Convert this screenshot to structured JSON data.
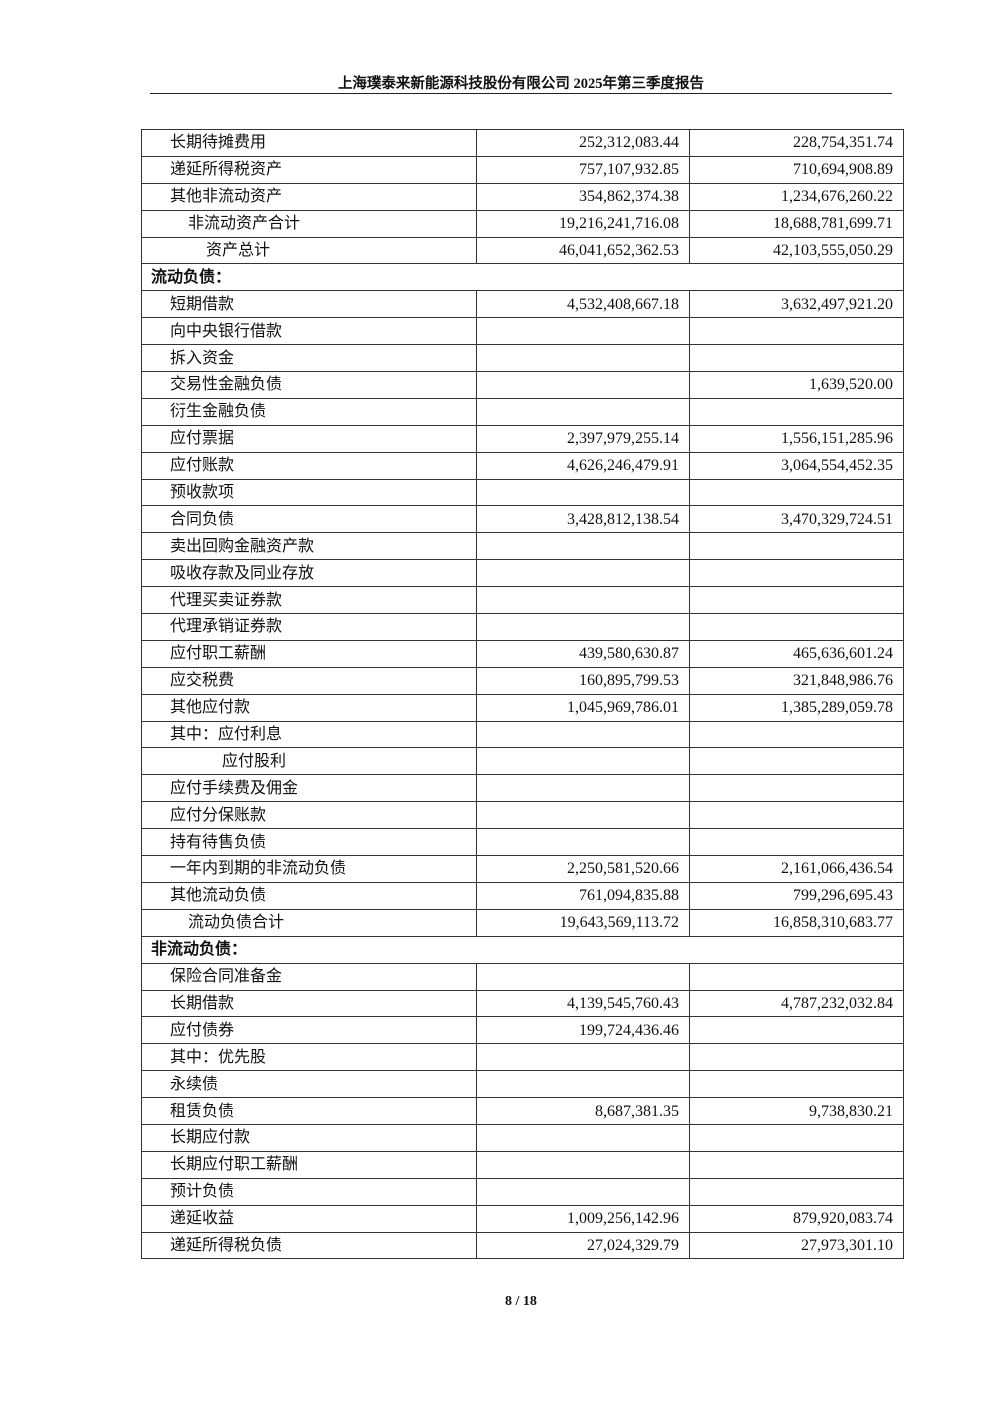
{
  "header": {
    "title": "上海璞泰来新能源科技股份有限公司 2025年第三季度报告"
  },
  "rows": [
    {
      "label": "长期待摊费用",
      "a": "252,312,083.44",
      "b": "228,754,351.74"
    },
    {
      "label": "递延所得税资产",
      "a": "757,107,932.85",
      "b": "710,694,908.89"
    },
    {
      "label": "其他非流动资产",
      "a": "354,862,374.38",
      "b": "1,234,676,260.22"
    },
    {
      "label": "非流动资产合计",
      "a": "19,216,241,716.08",
      "b": "18,688,781,699.71",
      "indent": 1
    },
    {
      "label": "资产总计",
      "a": "46,041,652,362.53",
      "b": "42,103,555,050.29",
      "indent": 2
    },
    {
      "label": "流动负债：",
      "section": true
    },
    {
      "label": "短期借款",
      "a": "4,532,408,667.18",
      "b": "3,632,497,921.20"
    },
    {
      "label": "向中央银行借款",
      "a": "",
      "b": ""
    },
    {
      "label": "拆入资金",
      "a": "",
      "b": ""
    },
    {
      "label": "交易性金融负债",
      "a": "",
      "b": "1,639,520.00"
    },
    {
      "label": "衍生金融负债",
      "a": "",
      "b": ""
    },
    {
      "label": "应付票据",
      "a": "2,397,979,255.14",
      "b": "1,556,151,285.96"
    },
    {
      "label": "应付账款",
      "a": "4,626,246,479.91",
      "b": "3,064,554,452.35"
    },
    {
      "label": "预收款项",
      "a": "",
      "b": ""
    },
    {
      "label": "合同负债",
      "a": "3,428,812,138.54",
      "b": "3,470,329,724.51"
    },
    {
      "label": "卖出回购金融资产款",
      "a": "",
      "b": ""
    },
    {
      "label": "吸收存款及同业存放",
      "a": "",
      "b": ""
    },
    {
      "label": "代理买卖证券款",
      "a": "",
      "b": ""
    },
    {
      "label": "代理承销证券款",
      "a": "",
      "b": ""
    },
    {
      "label": "应付职工薪酬",
      "a": "439,580,630.87",
      "b": "465,636,601.24"
    },
    {
      "label": "应交税费",
      "a": "160,895,799.53",
      "b": "321,848,986.76"
    },
    {
      "label": "其他应付款",
      "a": "1,045,969,786.01",
      "b": "1,385,289,059.78"
    },
    {
      "label": "其中：应付利息",
      "a": "",
      "b": ""
    },
    {
      "label": "应付股利",
      "a": "",
      "b": "",
      "indent": 3
    },
    {
      "label": "应付手续费及佣金",
      "a": "",
      "b": ""
    },
    {
      "label": "应付分保账款",
      "a": "",
      "b": ""
    },
    {
      "label": "持有待售负债",
      "a": "",
      "b": ""
    },
    {
      "label": "一年内到期的非流动负债",
      "a": "2,250,581,520.66",
      "b": "2,161,066,436.54"
    },
    {
      "label": "其他流动负债",
      "a": "761,094,835.88",
      "b": "799,296,695.43"
    },
    {
      "label": "流动负债合计",
      "a": "19,643,569,113.72",
      "b": "16,858,310,683.77",
      "indent": 1
    },
    {
      "label": "非流动负债：",
      "section": true
    },
    {
      "label": "保险合同准备金",
      "a": "",
      "b": ""
    },
    {
      "label": "长期借款",
      "a": "4,139,545,760.43",
      "b": "4,787,232,032.84"
    },
    {
      "label": "应付债券",
      "a": "199,724,436.46",
      "b": ""
    },
    {
      "label": "其中：优先股",
      "a": "",
      "b": ""
    },
    {
      "label": "永续债",
      "a": "",
      "b": ""
    },
    {
      "label": "租赁负债",
      "a": "8,687,381.35",
      "b": "9,738,830.21"
    },
    {
      "label": "长期应付款",
      "a": "",
      "b": ""
    },
    {
      "label": "长期应付职工薪酬",
      "a": "",
      "b": ""
    },
    {
      "label": "预计负债",
      "a": "",
      "b": ""
    },
    {
      "label": "递延收益",
      "a": "1,009,256,142.96",
      "b": "879,920,083.74"
    },
    {
      "label": "递延所得税负债",
      "a": "27,024,329.79",
      "b": "27,973,301.10"
    }
  ],
  "footer": {
    "page": "8 / 18"
  }
}
